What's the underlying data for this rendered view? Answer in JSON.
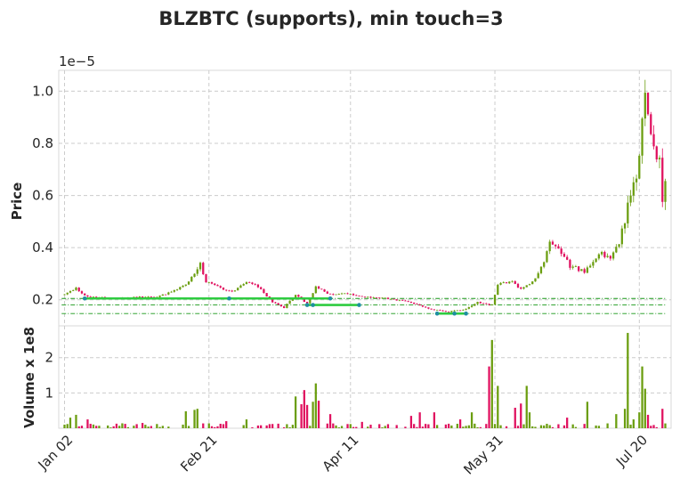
{
  "chart_data": {
    "type": "candlestick",
    "title": "BLZBTC (supports), min touch=3",
    "price_panel": {
      "ylabel": "Price",
      "offset_text": "1e−5",
      "ylim": [
        0.1,
        1.08
      ],
      "yticks": [
        0.2,
        0.4,
        0.6,
        0.8,
        1.0
      ],
      "ytick_labels": [
        "0.2",
        "0.4",
        "0.6",
        "0.8",
        "1.0"
      ],
      "grid": true
    },
    "volume_panel": {
      "ylabel": "Volume x 1e8",
      "ylim": [
        0,
        2.9
      ],
      "yticks": [
        1,
        2
      ],
      "ytick_labels": [
        "1",
        "2"
      ],
      "grid": true
    },
    "x_axis": {
      "range_days": [
        -2,
        210
      ],
      "tick_days": [
        0,
        50,
        99,
        149,
        199
      ],
      "tick_labels": [
        "Jan 02",
        "Feb 21",
        "Apr 11",
        "May 31",
        "Jul 20"
      ]
    },
    "colors": {
      "up": "#6b9e10",
      "down": "#e0115f",
      "support_line": "#2ecc40",
      "support_level": "#159615",
      "touch_point": "#1f8fa0",
      "grid": "#cccccc"
    },
    "support_levels": [
      0.205,
      0.18,
      0.147
    ],
    "support_segments": [
      {
        "x": [
          7,
          57,
          92
        ],
        "y": [
          0.205,
          0.205,
          0.205
        ]
      },
      {
        "x": [
          84,
          86,
          102
        ],
        "y": [
          0.18,
          0.18,
          0.18
        ]
      },
      {
        "x": [
          129,
          135,
          139
        ],
        "y": [
          0.147,
          0.147,
          0.147
        ]
      }
    ],
    "anchor_prices": [
      [
        0,
        0.22
      ],
      [
        4,
        0.245
      ],
      [
        7,
        0.215
      ],
      [
        10,
        0.21
      ],
      [
        18,
        0.205
      ],
      [
        25,
        0.21
      ],
      [
        32,
        0.21
      ],
      [
        38,
        0.235
      ],
      [
        42,
        0.26
      ],
      [
        45,
        0.3
      ],
      [
        47,
        0.34
      ],
      [
        49,
        0.27
      ],
      [
        55,
        0.24
      ],
      [
        58,
        0.23
      ],
      [
        63,
        0.27
      ],
      [
        67,
        0.25
      ],
      [
        72,
        0.19
      ],
      [
        76,
        0.17
      ],
      [
        80,
        0.22
      ],
      [
        84,
        0.185
      ],
      [
        87,
        0.25
      ],
      [
        92,
        0.22
      ],
      [
        97,
        0.225
      ],
      [
        103,
        0.21
      ],
      [
        112,
        0.205
      ],
      [
        120,
        0.19
      ],
      [
        126,
        0.165
      ],
      [
        133,
        0.155
      ],
      [
        138,
        0.16
      ],
      [
        143,
        0.19
      ],
      [
        148,
        0.18
      ],
      [
        150,
        0.26
      ],
      [
        155,
        0.27
      ],
      [
        158,
        0.24
      ],
      [
        161,
        0.26
      ],
      [
        163,
        0.28
      ],
      [
        166,
        0.35
      ],
      [
        168,
        0.43
      ],
      [
        171,
        0.4
      ],
      [
        175,
        0.33
      ],
      [
        180,
        0.31
      ],
      [
        185,
        0.38
      ],
      [
        189,
        0.36
      ],
      [
        192,
        0.42
      ],
      [
        195,
        0.55
      ],
      [
        197,
        0.68
      ],
      [
        198,
        0.66
      ],
      [
        201,
        0.98
      ],
      [
        204,
        0.8
      ],
      [
        206,
        0.72
      ],
      [
        207,
        0.6
      ],
      [
        208,
        0.66
      ]
    ],
    "volume_spikes": [
      [
        2,
        0.3
      ],
      [
        4,
        0.38
      ],
      [
        8,
        0.25
      ],
      [
        27,
        0.15
      ],
      [
        42,
        0.48
      ],
      [
        45,
        0.52
      ],
      [
        46,
        0.55
      ],
      [
        56,
        0.2
      ],
      [
        63,
        0.25
      ],
      [
        80,
        0.9
      ],
      [
        82,
        0.68
      ],
      [
        83,
        1.08
      ],
      [
        84,
        0.66
      ],
      [
        86,
        0.75
      ],
      [
        87,
        1.27
      ],
      [
        88,
        0.78
      ],
      [
        92,
        0.4
      ],
      [
        103,
        0.18
      ],
      [
        120,
        0.35
      ],
      [
        123,
        0.45
      ],
      [
        128,
        0.45
      ],
      [
        137,
        0.25
      ],
      [
        141,
        0.45
      ],
      [
        147,
        1.75
      ],
      [
        148,
        2.5
      ],
      [
        150,
        1.2
      ],
      [
        156,
        0.58
      ],
      [
        158,
        0.7
      ],
      [
        160,
        1.2
      ],
      [
        161,
        0.45
      ],
      [
        174,
        0.3
      ],
      [
        181,
        0.75
      ],
      [
        191,
        0.4
      ],
      [
        194,
        0.55
      ],
      [
        195,
        2.7
      ],
      [
        197,
        0.25
      ],
      [
        199,
        0.45
      ],
      [
        200,
        1.75
      ],
      [
        201,
        1.12
      ],
      [
        202,
        0.38
      ],
      [
        207,
        0.55
      ]
    ]
  }
}
